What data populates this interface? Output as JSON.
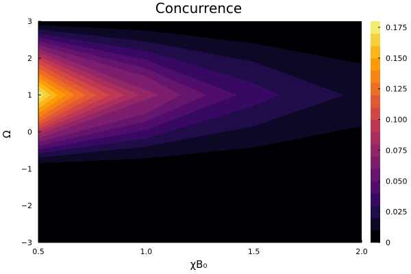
{
  "chart_data": {
    "type": "heatmap",
    "title": "Concurrence",
    "xlabel": "χB₀",
    "ylabel": "Ω",
    "xlim": [
      0.5,
      2.0
    ],
    "ylim": [
      -3,
      3
    ],
    "x_ticks": [
      0.5,
      1.0,
      1.5,
      2.0
    ],
    "x_tick_labels": [
      "0.5",
      "1.0",
      "1.5",
      "2.0"
    ],
    "y_ticks": [
      -3,
      -2,
      -1,
      0,
      1,
      2,
      3
    ],
    "y_tick_labels": [
      "−3",
      "−2",
      "−1",
      "0",
      "1",
      "2",
      "3"
    ],
    "colorbar": {
      "range": [
        0,
        0.18
      ],
      "levels": [
        0,
        0.01,
        0.02,
        0.03,
        0.04,
        0.05,
        0.06,
        0.07,
        0.08,
        0.09,
        0.1,
        0.11,
        0.12,
        0.13,
        0.14,
        0.15,
        0.16,
        0.17,
        0.18
      ],
      "ticks": [
        0,
        0.025,
        0.05,
        0.075,
        0.1,
        0.125,
        0.15,
        0.175
      ],
      "tick_labels": [
        "0",
        "0.025",
        "0.050",
        "0.075",
        "0.100",
        "0.125",
        "0.150",
        "0.175"
      ],
      "colormap": "inferno",
      "colors": [
        "#000004",
        "#0c0826",
        "#1f0c48",
        "#380962",
        "#500d6c",
        "#66156e",
        "#7c1d6d",
        "#932667",
        "#a92e5e",
        "#be3853",
        "#d24644",
        "#e25734",
        "#ef6d23",
        "#f78311",
        "#fb9b06",
        "#fbb61a",
        "#f6d13c",
        "#f1ed71"
      ]
    },
    "peak": {
      "x": 0.5,
      "y": 1.0,
      "value": 0.18
    },
    "x": [
      0.5,
      1.0,
      1.5,
      2.0
    ],
    "contour_extents": {
      "description_units": "data units",
      "level_extents": [
        {
          "level": 0.01,
          "x_tip": [
            2.0,
            1.0
          ],
          "top": [
            [
              0.5,
              2.9
            ],
            [
              1.0,
              2.75
            ],
            [
              1.5,
              2.4
            ],
            [
              2.0,
              1.85
            ]
          ],
          "bottom": [
            [
              0.5,
              -0.85
            ],
            [
              1.0,
              -0.72
            ],
            [
              1.5,
              -0.42
            ],
            [
              2.0,
              0.15
            ]
          ]
        },
        {
          "level": 0.02,
          "x_tip": [
            1.92,
            1.0
          ],
          "top": [
            [
              0.5,
              2.78
            ],
            [
              1.0,
              2.45
            ],
            [
              1.5,
              1.9
            ]
          ],
          "bottom": [
            [
              0.5,
              -0.7
            ],
            [
              1.0,
              -0.4
            ],
            [
              1.5,
              0.15
            ]
          ]
        },
        {
          "level": 0.03,
          "x_tip": [
            1.62,
            1.0
          ],
          "top": [
            [
              0.5,
              2.66
            ],
            [
              1.0,
              2.2
            ],
            [
              1.5,
              1.32
            ]
          ],
          "bottom": [
            [
              0.5,
              -0.58
            ],
            [
              1.0,
              -0.18
            ],
            [
              1.5,
              0.7
            ]
          ]
        },
        {
          "level": 0.04,
          "x_tip": [
            1.42,
            1.0
          ],
          "top": [
            [
              0.5,
              2.56
            ],
            [
              1.0,
              1.95
            ]
          ],
          "bottom": [
            [
              0.5,
              -0.48
            ],
            [
              1.0,
              0.05
            ]
          ]
        },
        {
          "level": 0.05,
          "x_tip": [
            1.28,
            1.0
          ],
          "top": [
            [
              0.5,
              2.46
            ],
            [
              1.0,
              1.72
            ]
          ],
          "bottom": [
            [
              0.5,
              -0.38
            ],
            [
              1.0,
              0.28
            ]
          ]
        },
        {
          "level": 0.06,
          "x_tip": [
            1.16,
            1.0
          ],
          "top": [
            [
              0.5,
              2.36
            ],
            [
              1.0,
              1.5
            ]
          ],
          "bottom": [
            [
              0.5,
              -0.28
            ],
            [
              1.0,
              0.5
            ]
          ]
        },
        {
          "level": 0.07,
          "x_tip": [
            1.06,
            1.0
          ],
          "top": [
            [
              0.5,
              2.26
            ]
          ],
          "bottom": [
            [
              0.5,
              -0.18
            ]
          ]
        },
        {
          "level": 0.08,
          "x_tip": [
            0.97,
            1.0
          ],
          "top": [
            [
              0.5,
              2.16
            ]
          ],
          "bottom": [
            [
              0.5,
              -0.08
            ]
          ]
        },
        {
          "level": 0.09,
          "x_tip": [
            0.9,
            1.0
          ],
          "top": [
            [
              0.5,
              2.06
            ]
          ],
          "bottom": [
            [
              0.5,
              0.0
            ]
          ]
        },
        {
          "level": 0.1,
          "x_tip": [
            0.83,
            1.0
          ],
          "top": [
            [
              0.5,
              1.96
            ]
          ],
          "bottom": [
            [
              0.5,
              0.08
            ]
          ]
        },
        {
          "level": 0.11,
          "x_tip": [
            0.77,
            1.0
          ],
          "top": [
            [
              0.5,
              1.84
            ]
          ],
          "bottom": [
            [
              0.5,
              0.17
            ]
          ]
        },
        {
          "level": 0.12,
          "x_tip": [
            0.72,
            1.0
          ],
          "top": [
            [
              0.5,
              1.72
            ]
          ],
          "bottom": [
            [
              0.5,
              0.27
            ]
          ]
        },
        {
          "level": 0.13,
          "x_tip": [
            0.67,
            1.0
          ],
          "top": [
            [
              0.5,
              1.6
            ]
          ],
          "bottom": [
            [
              0.5,
              0.38
            ]
          ]
        },
        {
          "level": 0.14,
          "x_tip": [
            0.63,
            1.0
          ],
          "top": [
            [
              0.5,
              1.48
            ]
          ],
          "bottom": [
            [
              0.5,
              0.5
            ]
          ]
        },
        {
          "level": 0.15,
          "x_tip": [
            0.59,
            1.0
          ],
          "top": [
            [
              0.5,
              1.36
            ]
          ],
          "bottom": [
            [
              0.5,
              0.62
            ]
          ]
        },
        {
          "level": 0.16,
          "x_tip": [
            0.555,
            1.0
          ],
          "top": [
            [
              0.5,
              1.24
            ]
          ],
          "bottom": [
            [
              0.5,
              0.75
            ]
          ]
        },
        {
          "level": 0.17,
          "x_tip": [
            0.525,
            1.0
          ],
          "top": [
            [
              0.5,
              1.12
            ]
          ],
          "bottom": [
            [
              0.5,
              0.88
            ]
          ]
        }
      ]
    }
  }
}
